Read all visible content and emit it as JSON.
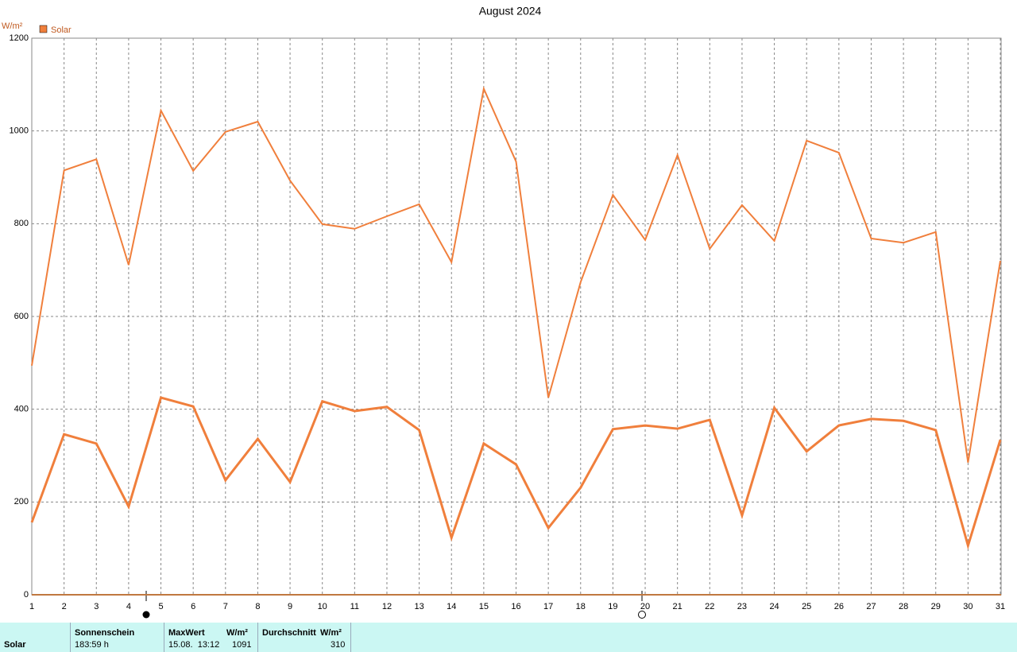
{
  "chart_data": {
    "type": "line",
    "title": "August 2024",
    "y_label": "W/m²",
    "x": [
      1,
      2,
      3,
      4,
      5,
      6,
      7,
      8,
      9,
      10,
      11,
      12,
      13,
      14,
      15,
      16,
      17,
      18,
      19,
      20,
      21,
      22,
      23,
      24,
      25,
      26,
      27,
      28,
      29,
      30,
      31
    ],
    "xlim": [
      1,
      31
    ],
    "xticks": [
      1,
      2,
      3,
      4,
      5,
      6,
      7,
      8,
      9,
      10,
      11,
      12,
      13,
      14,
      15,
      16,
      17,
      18,
      19,
      20,
      21,
      22,
      23,
      24,
      25,
      26,
      27,
      28,
      29,
      30,
      31
    ],
    "ylim": [
      0,
      1200
    ],
    "yticks": [
      0,
      200,
      400,
      600,
      800,
      1000,
      1200
    ],
    "grid": true,
    "series": [
      {
        "name": "Solar",
        "color": "#f07f3c",
        "width": 2,
        "values": [
          494,
          915,
          939,
          711,
          1044,
          914,
          998,
          1020,
          893,
          799,
          789,
          816,
          842,
          717,
          1091,
          934,
          425,
          674,
          862,
          765,
          948,
          746,
          840,
          763,
          979,
          953,
          768,
          759,
          782,
          285,
          720
        ]
      },
      {
        "color": "#f07f3c",
        "width": 3,
        "values": [
          156,
          346,
          326,
          190,
          425,
          406,
          247,
          336,
          243,
          417,
          396,
          405,
          355,
          123,
          326,
          281,
          144,
          231,
          357,
          365,
          358,
          377,
          171,
          403,
          309,
          365,
          379,
          375,
          355,
          106,
          334
        ]
      }
    ]
  },
  "summary_table": {
    "row_label": "Solar",
    "columns": [
      {
        "header": "Sonnenschein",
        "value": "183:59 h"
      },
      {
        "header": "MaxWert",
        "unit": "W/m²",
        "date": "15.08.  13:12",
        "value": 1091
      },
      {
        "header": "Durchschnitt",
        "unit": "W/m²",
        "value": 310
      }
    ]
  }
}
